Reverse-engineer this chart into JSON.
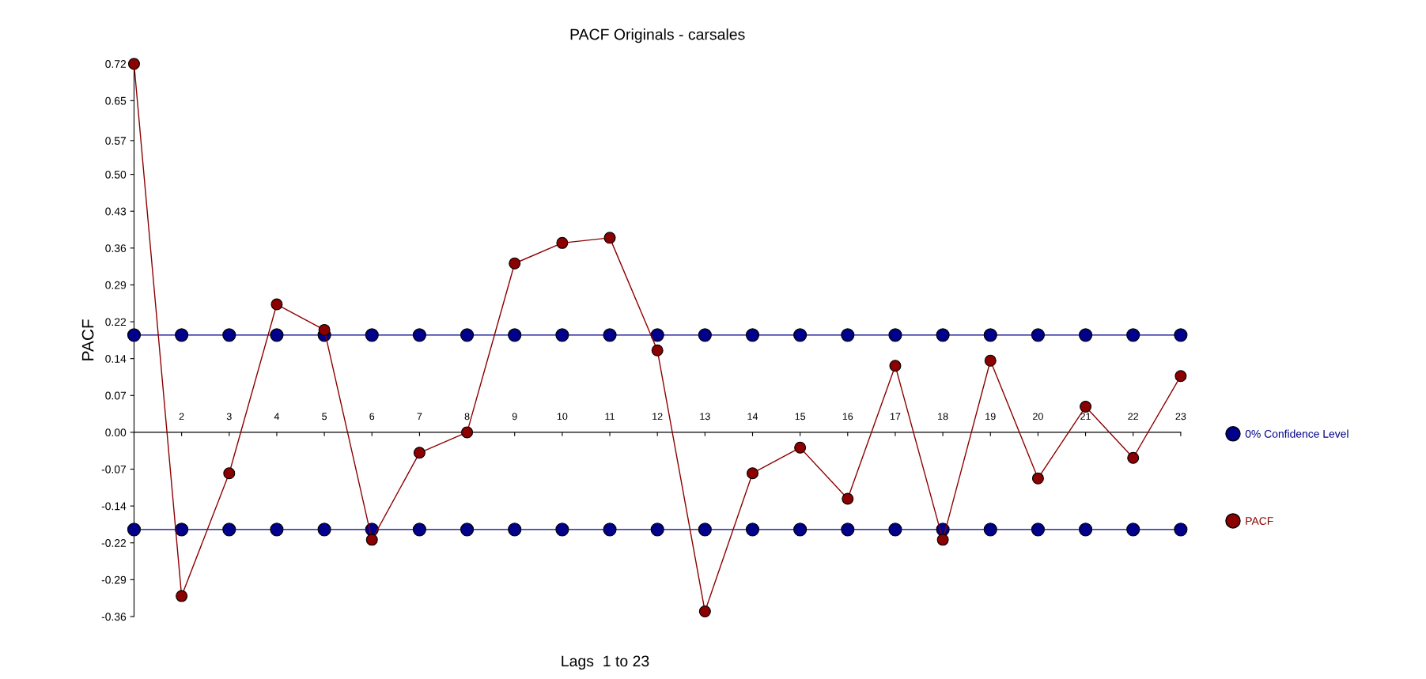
{
  "chart_data": {
    "type": "line",
    "title": "PACF Originals - carsales",
    "xlabel": "Lags  1 to 23",
    "ylabel": "PACF",
    "x": [
      1,
      2,
      3,
      4,
      5,
      6,
      7,
      8,
      9,
      10,
      11,
      12,
      13,
      14,
      15,
      16,
      17,
      18,
      19,
      20,
      21,
      22,
      23
    ],
    "series": [
      {
        "name": "0% Confidence Level",
        "color": "#00008b",
        "values": [
          0.19,
          0.19,
          0.19,
          0.19,
          0.19,
          0.19,
          0.19,
          0.19,
          0.19,
          0.19,
          0.19,
          0.19,
          0.19,
          0.19,
          0.19,
          0.19,
          0.19,
          0.19,
          0.19,
          0.19,
          0.19,
          0.19,
          0.19
        ]
      },
      {
        "color": "#00008b",
        "values": [
          -0.19,
          -0.19,
          -0.19,
          -0.19,
          -0.19,
          -0.19,
          -0.19,
          -0.19,
          -0.19,
          -0.19,
          -0.19,
          -0.19,
          -0.19,
          -0.19,
          -0.19,
          -0.19,
          -0.19,
          -0.19,
          -0.19,
          -0.19,
          -0.19,
          -0.19,
          -0.19
        ]
      },
      {
        "name": "PACF",
        "color": "#8b0000",
        "values": [
          0.72,
          -0.32,
          -0.08,
          0.25,
          0.2,
          -0.21,
          -0.04,
          0.0,
          0.33,
          0.37,
          0.38,
          0.16,
          -0.35,
          -0.08,
          -0.03,
          -0.13,
          0.13,
          -0.21,
          0.14,
          -0.09,
          0.05,
          -0.05,
          0.11
        ]
      }
    ],
    "xlim": [
      1,
      23
    ],
    "xticks": [
      {
        "value": 1,
        "label": null
      },
      2,
      3,
      4,
      5,
      6,
      7,
      8,
      9,
      10,
      11,
      12,
      13,
      14,
      15,
      16,
      17,
      18,
      19,
      20,
      21,
      22,
      23
    ],
    "ylim": [
      -0.36,
      0.72
    ],
    "yticks": [
      {
        "value": 0.72,
        "label": "0.72"
      },
      {
        "value": 0.648,
        "label": "0.65"
      },
      {
        "value": 0.57,
        "label": "0.57"
      },
      {
        "value": 0.504,
        "label": "0.50"
      },
      {
        "value": 0.432,
        "label": "0.43"
      },
      {
        "value": 0.36,
        "label": "0.36"
      },
      {
        "value": 0.288,
        "label": "0.29"
      },
      {
        "value": 0.216,
        "label": "0.22"
      },
      {
        "value": 0.144,
        "label": "0.14"
      },
      {
        "value": 0.072,
        "label": "0.07"
      },
      {
        "value": 0,
        "label": "0.00"
      },
      {
        "value": -0.072,
        "label": "-0.07"
      },
      {
        "value": -0.144,
        "label": "-0.14"
      },
      {
        "value": -0.216,
        "label": "-0.22"
      },
      {
        "value": -0.288,
        "label": "-0.29"
      },
      {
        "value": -0.36,
        "label": "-0.36"
      }
    ],
    "marker": "circle",
    "line_style": "solid",
    "grid": false,
    "legend": "right"
  }
}
